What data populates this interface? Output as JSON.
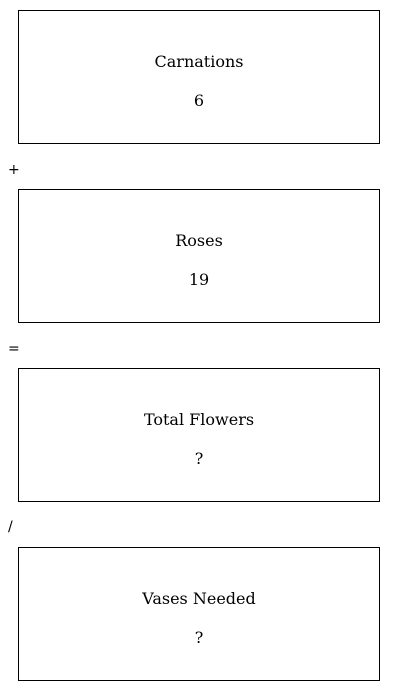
{
  "boxes": [
    {
      "label": "Carnations",
      "value": "6"
    },
    {
      "label": "Roses",
      "value": "19"
    },
    {
      "label": "Total Flowers",
      "value": "?"
    },
    {
      "label": "Vases Needed",
      "value": "?"
    }
  ],
  "operators": [
    "+",
    "=",
    "/"
  ]
}
